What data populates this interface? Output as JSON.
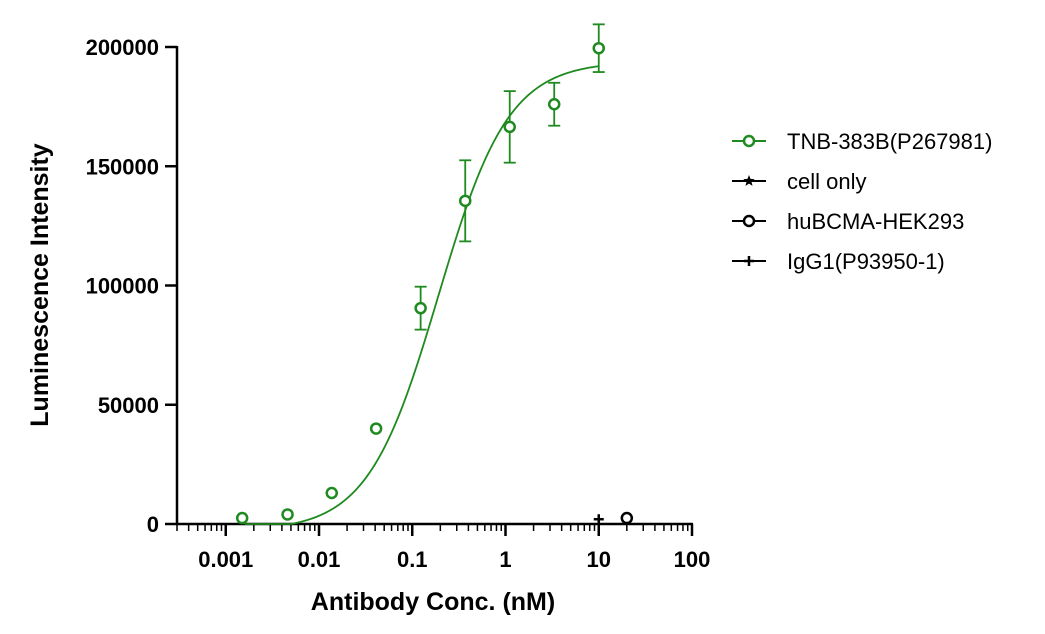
{
  "chart_data": {
    "type": "scatter",
    "xlabel": "Antibody Conc. (nM)",
    "ylabel": "Luminescence Intensity",
    "x_scale": "log",
    "xlim": [
      0.0003,
      100
    ],
    "ylim": [
      0,
      200000
    ],
    "x_tick_labels": [
      "0.001",
      "0.01",
      "0.1",
      "1",
      "10",
      "100"
    ],
    "y_tick_labels": [
      "0",
      "50000",
      "100000",
      "150000",
      "200000"
    ],
    "legend_position": "right",
    "colors": {
      "green": "#1f8a1f",
      "black": "#000000"
    },
    "series": [
      {
        "name": "TNB-383B(P267981)",
        "color": "#1f8a1f",
        "marker": "open-circle",
        "points": [
          {
            "x": 0.0015,
            "y": 2500,
            "err": 0
          },
          {
            "x": 0.0046,
            "y": 4000,
            "err": 0
          },
          {
            "x": 0.0137,
            "y": 13000,
            "err": 0
          },
          {
            "x": 0.041,
            "y": 40000,
            "err": 0
          },
          {
            "x": 0.123,
            "y": 90500,
            "err": 9000
          },
          {
            "x": 0.37,
            "y": 135500,
            "err": 17000
          },
          {
            "x": 1.11,
            "y": 166500,
            "err": 15000
          },
          {
            "x": 3.33,
            "y": 176000,
            "err": 9000
          },
          {
            "x": 10,
            "y": 199500,
            "err": 10000
          }
        ],
        "fit": {
          "bottom": -3000,
          "top": 194000,
          "ec50": 0.19,
          "hill": 1.15
        }
      },
      {
        "name": "cell only",
        "color": "#000000",
        "marker": "star",
        "points": []
      },
      {
        "name": "huBCMA-HEK293",
        "color": "#000000",
        "marker": "open-circle",
        "points": [
          {
            "x": 20,
            "y": 2500,
            "err": 0
          }
        ]
      },
      {
        "name": "IgG1(P93950-1)",
        "color": "#000000",
        "marker": "plus",
        "points": [
          {
            "x": 10,
            "y": 2000,
            "err": 0
          }
        ]
      }
    ]
  }
}
